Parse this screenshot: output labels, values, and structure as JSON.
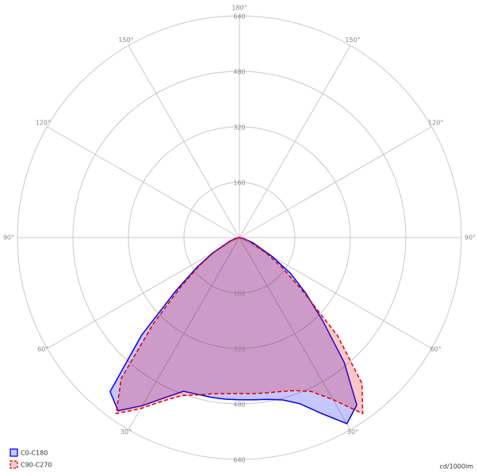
{
  "chart_data": {
    "type": "polar",
    "x": [
      -90,
      -80,
      -70,
      -60,
      -55,
      -50,
      -45,
      -40,
      -35,
      -30,
      -25,
      -20,
      -15,
      -10,
      -5,
      0,
      5,
      10,
      15,
      20,
      25,
      30,
      35,
      40,
      45,
      50,
      55,
      60,
      70,
      80,
      90
    ],
    "series": [
      {
        "name": "C0-C180",
        "color": "#0000ff",
        "dash": false,
        "values": [
          0,
          10,
          30,
          90,
          150,
          240,
          400,
          580,
          610,
          560,
          510,
          472,
          468,
          468,
          468,
          468,
          470,
          474,
          485,
          510,
          560,
          620,
          590,
          470,
          340,
          250,
          180,
          110,
          40,
          10,
          0
        ]
      },
      {
        "name": "C90-C270",
        "color": "#e00000",
        "dash": true,
        "values": [
          0,
          10,
          30,
          85,
          140,
          220,
          350,
          530,
          620,
          570,
          520,
          485,
          470,
          458,
          452,
          450,
          452,
          455,
          460,
          470,
          490,
          540,
          620,
          550,
          400,
          235,
          150,
          90,
          30,
          10,
          0
        ]
      }
    ],
    "rlim": [
      0,
      640
    ],
    "rticks": [
      160,
      320,
      480,
      640
    ],
    "angle_ticks": [
      {
        "value": -150,
        "label": "150°"
      },
      {
        "value": -120,
        "label": "120°"
      },
      {
        "value": -90,
        "label": "90°"
      },
      {
        "value": -60,
        "label": "60°"
      },
      {
        "value": -30,
        "label": "30°"
      },
      {
        "value": 180,
        "label": "180°"
      },
      {
        "value": 150,
        "label": "150°"
      },
      {
        "value": 120,
        "label": "120°"
      },
      {
        "value": 90,
        "label": "90°"
      },
      {
        "value": 60,
        "label": "60°"
      },
      {
        "value": 30,
        "label": "30°"
      }
    ],
    "units": "cd/1000lm"
  }
}
